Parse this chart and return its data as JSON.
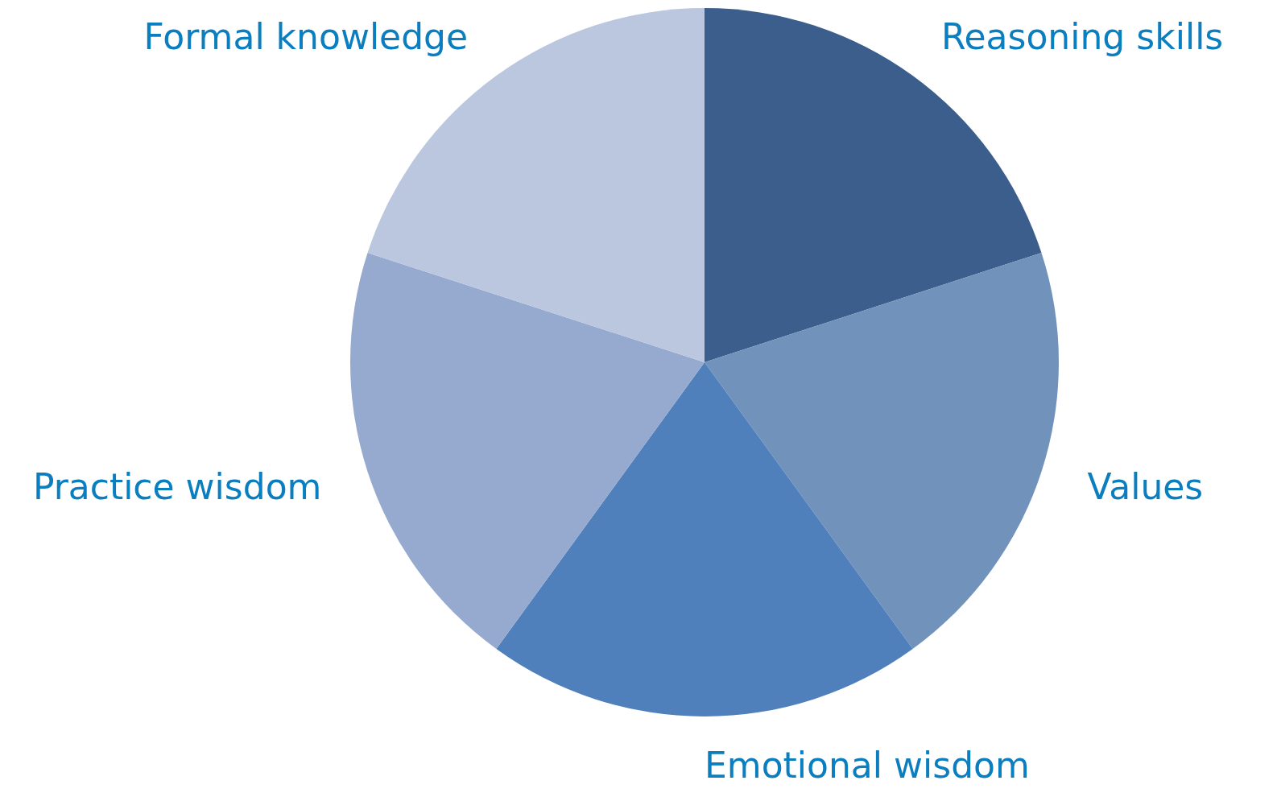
{
  "chart_data": {
    "type": "pie",
    "categories": [
      "Reasoning skills",
      "Values",
      "Emotional wisdom",
      "Practice wisdom",
      "Formal knowledge"
    ],
    "values": [
      20,
      20,
      20,
      20,
      20
    ],
    "colors": [
      "#3b5e8c",
      "#7192bb",
      "#4f80bb",
      "#96a9cf",
      "#bbc7df"
    ],
    "legend": false
  }
}
